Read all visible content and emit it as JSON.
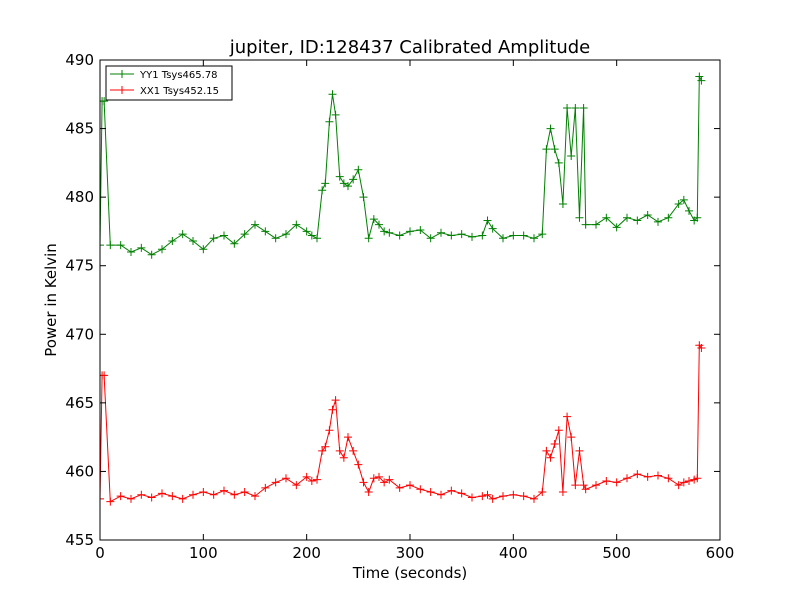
{
  "chart_data": {
    "type": "line",
    "title": "jupiter, ID:128437 Calibrated Amplitude",
    "xlabel": "Time (seconds)",
    "ylabel": "Power in Kelvin",
    "xlim": [
      0,
      600
    ],
    "ylim": [
      455,
      490
    ],
    "xticks": [
      0,
      100,
      200,
      300,
      400,
      500,
      600
    ],
    "yticks": [
      455,
      460,
      465,
      470,
      475,
      480,
      485,
      490
    ],
    "grid": false,
    "legend_position": "top-left",
    "marker": "+",
    "series": [
      {
        "name": "YY1 Tsys465.78",
        "color": "#008000",
        "x": [
          0,
          2,
          4,
          10,
          20,
          30,
          40,
          50,
          60,
          70,
          80,
          90,
          100,
          110,
          120,
          130,
          140,
          150,
          160,
          170,
          180,
          190,
          200,
          205,
          210,
          215,
          218,
          222,
          225,
          228,
          232,
          236,
          240,
          245,
          250,
          255,
          260,
          265,
          270,
          275,
          280,
          290,
          300,
          310,
          320,
          330,
          340,
          350,
          360,
          370,
          375,
          380,
          390,
          400,
          410,
          420,
          428,
          432,
          436,
          440,
          444,
          448,
          452,
          456,
          460,
          464,
          468,
          470,
          480,
          490,
          500,
          510,
          520,
          530,
          540,
          550,
          560,
          565,
          570,
          575,
          578,
          580,
          582
        ],
        "y": [
          476.5,
          487,
          487,
          476.5,
          476.5,
          476,
          476.3,
          475.8,
          476.2,
          476.8,
          477.3,
          476.8,
          476.2,
          477,
          477.2,
          476.6,
          477.3,
          478,
          477.5,
          477,
          477.3,
          478,
          477.5,
          477.2,
          477,
          480.5,
          481,
          485.5,
          487.5,
          486,
          481.5,
          481,
          480.8,
          481.3,
          482,
          480,
          477,
          478.4,
          478,
          477.5,
          477.4,
          477.2,
          477.5,
          477.6,
          477,
          477.4,
          477.2,
          477.3,
          477.1,
          477.2,
          478.3,
          477.7,
          477,
          477.2,
          477.2,
          477,
          477.3,
          483.5,
          485,
          483.5,
          482.5,
          479.5,
          486.5,
          483,
          486.5,
          478.5,
          486.5,
          478,
          478,
          478.5,
          477.8,
          478.5,
          478.3,
          478.7,
          478.2,
          478.5,
          479.5,
          479.8,
          479,
          478.3,
          478.5,
          488.8,
          488.5
        ]
      },
      {
        "name": "XX1 Tsys452.15",
        "color": "#ff0000",
        "x": [
          0,
          2,
          4,
          10,
          20,
          30,
          40,
          50,
          60,
          70,
          80,
          90,
          100,
          110,
          120,
          130,
          140,
          150,
          160,
          170,
          180,
          190,
          200,
          205,
          210,
          215,
          218,
          222,
          225,
          228,
          232,
          236,
          240,
          245,
          250,
          255,
          260,
          265,
          270,
          275,
          280,
          290,
          300,
          310,
          320,
          330,
          340,
          350,
          360,
          370,
          375,
          380,
          390,
          400,
          410,
          420,
          428,
          432,
          436,
          440,
          444,
          448,
          452,
          456,
          460,
          464,
          468,
          470,
          480,
          490,
          500,
          510,
          520,
          530,
          540,
          550,
          560,
          565,
          570,
          575,
          578,
          580,
          582
        ],
        "y": [
          458,
          467,
          467,
          457.8,
          458.2,
          458,
          458.3,
          458.1,
          458.4,
          458.2,
          458,
          458.3,
          458.5,
          458.3,
          458.6,
          458.3,
          458.5,
          458.2,
          458.8,
          459.2,
          459.5,
          459,
          459.6,
          459.3,
          459.4,
          461.5,
          461.8,
          463,
          464.5,
          465.2,
          461.5,
          461,
          462.5,
          461.5,
          460.5,
          459.2,
          458.5,
          459.5,
          459.6,
          459.2,
          459.4,
          458.8,
          459,
          458.7,
          458.5,
          458.3,
          458.6,
          458.4,
          458.1,
          458.2,
          458.3,
          458,
          458.2,
          458.3,
          458.2,
          458,
          458.5,
          461.5,
          461,
          462,
          463,
          458.5,
          464,
          462.5,
          459,
          461.5,
          459,
          458.7,
          459,
          459.3,
          459.2,
          459.5,
          459.8,
          459.6,
          459.7,
          459.5,
          459,
          459.2,
          459.3,
          459.4,
          459.5,
          469.2,
          469
        ]
      }
    ]
  }
}
